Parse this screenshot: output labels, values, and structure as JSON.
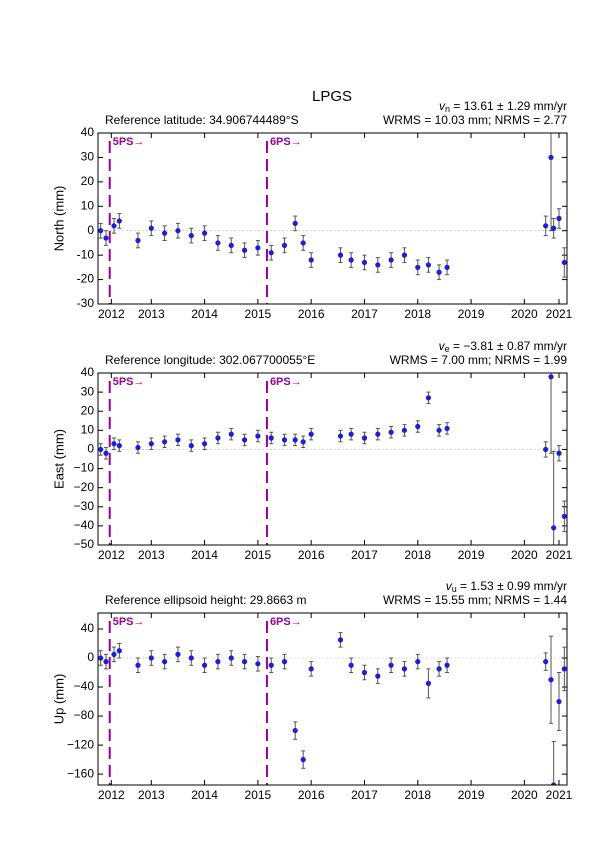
{
  "title": "LPGS",
  "chart_data": [
    {
      "type": "errorbar",
      "ylabel": "North (mm)",
      "velocity_symbol": "v",
      "velocity_sub": "n",
      "velocity_text": " = 13.61 ± 1.29 mm/yr",
      "stats": "WRMS = 10.03 mm; NRMS = 2.77",
      "reference": "Reference latitude: 34.906744489°S",
      "xlim": [
        2012.0,
        2020.8
      ],
      "xticks": [
        {
          "value": 2012.25,
          "label": "2012"
        },
        2013,
        2014,
        2015,
        2016,
        2017,
        2018,
        2019,
        2020,
        {
          "value": 2020.65,
          "label": "2021"
        }
      ],
      "ylim": [
        -30,
        40
      ],
      "yticks": [
        -30,
        -20,
        -10,
        0,
        10,
        20,
        30,
        40
      ],
      "events": [
        {
          "x": 2012.22,
          "label": "5PS→"
        },
        {
          "x": 2015.17,
          "label": "6PS→"
        }
      ],
      "event_color": "#990099",
      "zero_line": true,
      "series": [
        {
          "color": "#1a1aff",
          "error_color": "#555555",
          "x": [
            2012.05,
            2012.15,
            2012.3,
            2012.4,
            2012.75,
            2013.0,
            2013.25,
            2013.5,
            2013.75,
            2014.0,
            2014.25,
            2014.5,
            2014.75,
            2015.0,
            2015.25,
            2015.5,
            2015.7,
            2015.85,
            2016.0,
            2016.55,
            2016.75,
            2017.0,
            2017.25,
            2017.5,
            2017.75,
            2018.0,
            2018.2,
            2018.4,
            2018.55,
            2020.4,
            2020.5,
            2020.55,
            2020.65,
            2020.75
          ],
          "values": [
            0,
            -3,
            2,
            4,
            -4,
            1,
            -1,
            0,
            -2,
            -1,
            -5,
            -6,
            -8,
            -7,
            -9,
            -6,
            3,
            -5,
            -12,
            -10,
            -12,
            -13,
            -14,
            -12,
            -10,
            -15,
            -14,
            -17,
            -15,
            2,
            30,
            1,
            5,
            -13
          ],
          "errors": [
            3,
            3,
            3,
            3,
            3,
            3,
            3,
            3,
            3,
            3,
            3,
            3,
            3,
            3,
            3,
            3,
            3,
            3,
            3,
            3,
            3,
            3,
            3,
            3,
            3,
            3,
            3,
            3,
            3,
            4,
            30,
            4,
            4,
            6
          ]
        }
      ]
    },
    {
      "type": "errorbar",
      "ylabel": "East (mm)",
      "velocity_symbol": "v",
      "velocity_sub": "e",
      "velocity_text": " = −3.81 ± 0.87 mm/yr",
      "stats": "WRMS = 7.00 mm; NRMS = 1.99",
      "reference": "Reference longitude: 302.067700055°E",
      "xlim": [
        2012.0,
        2020.8
      ],
      "xticks": [
        {
          "value": 2012.25,
          "label": "2012"
        },
        2013,
        2014,
        2015,
        2016,
        2017,
        2018,
        2019,
        2020,
        {
          "value": 2020.65,
          "label": "2021"
        }
      ],
      "ylim": [
        -50,
        40
      ],
      "yticks": [
        {
          "value": -50,
          "label": "−50"
        },
        {
          "value": -40,
          "label": "−40"
        },
        {
          "value": -30,
          "label": "−30"
        },
        {
          "value": -20,
          "label": "−20"
        },
        {
          "value": -10,
          "label": "−10"
        },
        0,
        10,
        20,
        30,
        40
      ],
      "events": [
        {
          "x": 2012.22,
          "label": "5PS→"
        },
        {
          "x": 2015.17,
          "label": "6PS→"
        }
      ],
      "event_color": "#990099",
      "zero_line": true,
      "series": [
        {
          "color": "#1a1aff",
          "error_color": "#555555",
          "x": [
            2012.05,
            2012.15,
            2012.3,
            2012.4,
            2012.75,
            2013.0,
            2013.25,
            2013.5,
            2013.75,
            2014.0,
            2014.25,
            2014.5,
            2014.75,
            2015.0,
            2015.25,
            2015.5,
            2015.7,
            2015.85,
            2016.0,
            2016.55,
            2016.75,
            2017.0,
            2017.25,
            2017.5,
            2017.75,
            2018.0,
            2018.2,
            2018.4,
            2018.55,
            2020.4,
            2020.5,
            2020.55,
            2020.65,
            2020.75
          ],
          "values": [
            0,
            -2,
            3,
            2,
            1,
            3,
            4,
            5,
            2,
            3,
            6,
            8,
            5,
            7,
            6,
            5,
            5,
            4,
            8,
            7,
            8,
            6,
            8,
            9,
            10,
            12,
            27,
            10,
            11,
            0,
            38,
            -41,
            -2,
            -35
          ],
          "errors": [
            3,
            3,
            3,
            3,
            3,
            3,
            3,
            3,
            3,
            3,
            3,
            3,
            3,
            3,
            3,
            3,
            3,
            3,
            3,
            3,
            3,
            3,
            3,
            3,
            3,
            3,
            3,
            3,
            3,
            4,
            40,
            40,
            4,
            8
          ]
        }
      ]
    },
    {
      "type": "errorbar",
      "ylabel": "Up (mm)",
      "velocity_symbol": "v",
      "velocity_sub": "u",
      "velocity_text": " = 1.53 ± 0.99 mm/yr",
      "stats": "WRMS = 15.55 mm; NRMS = 1.44",
      "reference": "Reference ellipsoid height: 29.8663 m",
      "xlim": [
        2012.0,
        2020.8
      ],
      "xticks": [
        {
          "value": 2012.25,
          "label": "2012"
        },
        2013,
        2014,
        2015,
        2016,
        2017,
        2018,
        2019,
        2020,
        {
          "value": 2020.65,
          "label": "2021"
        }
      ],
      "ylim": [
        -175,
        62
      ],
      "yticks": [
        {
          "value": -160,
          "label": "−160"
        },
        {
          "value": -120,
          "label": "−120"
        },
        {
          "value": -80,
          "label": "−80"
        },
        {
          "value": -40,
          "label": "−40"
        },
        0,
        40
      ],
      "events": [
        {
          "x": 2012.22,
          "label": "5PS→"
        },
        {
          "x": 2015.17,
          "label": "6PS→"
        }
      ],
      "event_color": "#990099",
      "zero_line": true,
      "series": [
        {
          "color": "#1a1aff",
          "error_color": "#555555",
          "x": [
            2012.05,
            2012.15,
            2012.3,
            2012.4,
            2012.75,
            2013.0,
            2013.25,
            2013.5,
            2013.75,
            2014.0,
            2014.25,
            2014.5,
            2014.75,
            2015.0,
            2015.25,
            2015.5,
            2015.7,
            2015.85,
            2016.0,
            2016.55,
            2016.75,
            2017.0,
            2017.25,
            2017.5,
            2017.75,
            2018.0,
            2018.2,
            2018.4,
            2018.55,
            2020.4,
            2020.5,
            2020.55,
            2020.65,
            2020.75
          ],
          "values": [
            0,
            -5,
            5,
            10,
            -10,
            0,
            -5,
            5,
            0,
            -10,
            -5,
            0,
            -5,
            -8,
            -10,
            -5,
            -100,
            -140,
            -15,
            25,
            -10,
            -20,
            -25,
            -10,
            -15,
            -5,
            -35,
            -15,
            -10,
            -5,
            -30,
            -175,
            -60,
            -15
          ],
          "errors": [
            10,
            10,
            10,
            10,
            10,
            10,
            10,
            10,
            10,
            10,
            10,
            10,
            10,
            10,
            10,
            10,
            12,
            12,
            10,
            10,
            10,
            10,
            10,
            10,
            10,
            10,
            20,
            10,
            10,
            12,
            60,
            60,
            40,
            30
          ]
        }
      ]
    }
  ]
}
